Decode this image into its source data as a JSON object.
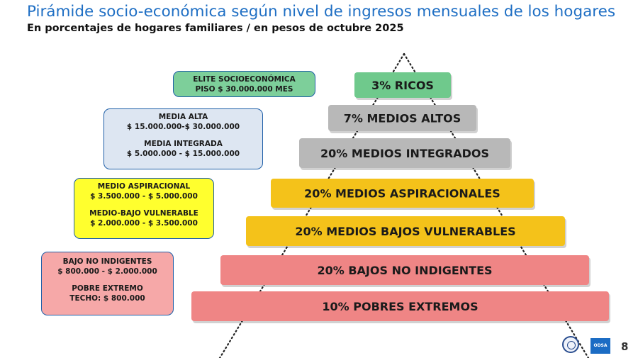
{
  "chart_data": {
    "type": "bar",
    "title": "Pirámide socio-económica según nivel de ingresos mensuales de los hogares",
    "subtitle": "En porcentajes de hogares familiares / en pesos de octubre 2025",
    "bars": [
      {
        "label": "3%  RICOS",
        "value": 3,
        "color": "#6fc98c"
      },
      {
        "label": "7%  MEDIOS ALTOS",
        "value": 7,
        "color": "#b8b8b8"
      },
      {
        "label": "20%  MEDIOS INTEGRADOS",
        "value": 20,
        "color": "#b8b8b8"
      },
      {
        "label": "20%  MEDIOS ASPIRACIONALES",
        "value": 20,
        "color": "#f4c21a"
      },
      {
        "label": "20%  MEDIOS BAJOS VULNERABLES",
        "value": 20,
        "color": "#f4c21a"
      },
      {
        "label": "20%  BAJOS NO INDIGENTES",
        "value": 20,
        "color": "#ef8585"
      },
      {
        "label": "10%  POBRES EXTREMOS",
        "value": 10,
        "color": "#ef8585"
      }
    ]
  },
  "annotations": [
    {
      "color": "#7dcf9a",
      "lines": [
        "ELITE SOCIOECONÓMICA",
        "PISO $ 30.000.000 MES"
      ]
    },
    {
      "color": "#dde6f2",
      "lines": [
        "MEDIA ALTA",
        "$ 15.000.000-$ 30.000.000",
        "",
        "MEDIA INTEGRADA",
        "$ 5.000.000 - $ 15.000.000"
      ]
    },
    {
      "color": "#ffff2e",
      "lines": [
        "MEDIO ASPIRACIONAL",
        "$ 3.500.000 - $ 5.000.000",
        "",
        "MEDIO-BAJO VULNERABLE",
        "$ 2.000.000 - $ 3.500.000"
      ]
    },
    {
      "color": "#f6a8a8",
      "lines": [
        "BAJO NO INDIGENTES",
        "$ 800.000 - $ 2.000.000",
        "",
        "POBRE EXTREMO",
        "TECHO: $ 800.000"
      ]
    }
  ],
  "footer": {
    "page_number": "8",
    "logo_text": "ODSA"
  }
}
